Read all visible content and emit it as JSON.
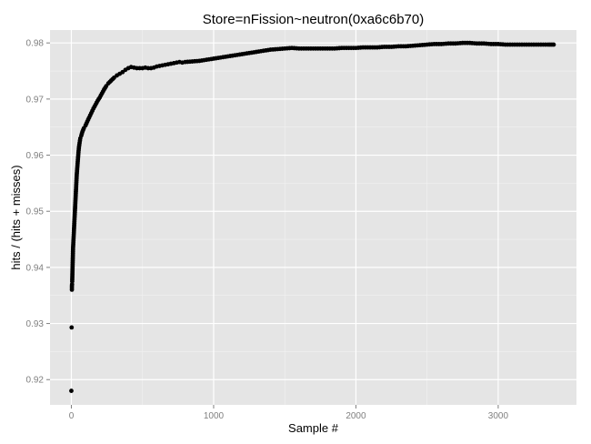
{
  "chart_data": {
    "type": "scatter",
    "title": "Store=nFission~neutron(0xa6c6b70)",
    "xlabel": "Sample #",
    "ylabel": "hits / (hits + misses)",
    "xlim": [
      -150,
      3550
    ],
    "ylim": [
      0.9155,
      0.9823
    ],
    "x_ticks": [
      0,
      1000,
      2000,
      3000
    ],
    "y_ticks": [
      0.92,
      0.93,
      0.94,
      0.95,
      0.96,
      0.97,
      0.98
    ],
    "x_tick_labels": [
      "0",
      "1000",
      "2000",
      "3000"
    ],
    "y_tick_labels": [
      "0.92",
      "0.93",
      "0.94",
      "0.95",
      "0.96",
      "0.97",
      "0.98"
    ],
    "grid": true,
    "colors": {
      "panel": "#e5e5e5",
      "grid": "#ffffff",
      "point": "#000000"
    },
    "points": [
      [
        0,
        0.918
      ],
      [
        2,
        0.9293
      ],
      [
        4,
        0.9367
      ],
      [
        5,
        0.937
      ],
      [
        6,
        0.9375
      ],
      [
        7,
        0.9385
      ],
      [
        8,
        0.9395
      ],
      [
        9,
        0.9405
      ],
      [
        10,
        0.9415
      ],
      [
        11,
        0.9425
      ],
      [
        12,
        0.9435
      ],
      [
        14,
        0.9445
      ],
      [
        16,
        0.9455
      ],
      [
        18,
        0.9465
      ],
      [
        20,
        0.9475
      ],
      [
        22,
        0.9485
      ],
      [
        24,
        0.9495
      ],
      [
        26,
        0.9505
      ],
      [
        28,
        0.9515
      ],
      [
        30,
        0.9525
      ],
      [
        32,
        0.9535
      ],
      [
        34,
        0.9545
      ],
      [
        36,
        0.9555
      ],
      [
        38,
        0.9565
      ],
      [
        41,
        0.9575
      ],
      [
        44,
        0.9585
      ],
      [
        47,
        0.9595
      ],
      [
        50,
        0.9605
      ],
      [
        54,
        0.9615
      ],
      [
        58,
        0.9622
      ],
      [
        63,
        0.963
      ],
      [
        70,
        0.9635
      ],
      [
        78,
        0.9642
      ],
      [
        88,
        0.9648
      ],
      [
        100,
        0.9653
      ],
      [
        112,
        0.966
      ],
      [
        125,
        0.9667
      ],
      [
        140,
        0.9675
      ],
      [
        155,
        0.9683
      ],
      [
        170,
        0.969
      ],
      [
        185,
        0.9697
      ],
      [
        200,
        0.9703
      ],
      [
        215,
        0.971
      ],
      [
        230,
        0.9717
      ],
      [
        245,
        0.9723
      ],
      [
        260,
        0.9728
      ],
      [
        280,
        0.9733
      ],
      [
        300,
        0.9738
      ],
      [
        320,
        0.9742
      ],
      [
        340,
        0.9745
      ],
      [
        360,
        0.9748
      ],
      [
        380,
        0.9752
      ],
      [
        400,
        0.9755
      ],
      [
        420,
        0.9757
      ],
      [
        440,
        0.9756
      ],
      [
        460,
        0.9755
      ],
      [
        480,
        0.9755
      ],
      [
        500,
        0.9755
      ],
      [
        520,
        0.9756
      ],
      [
        540,
        0.9755
      ],
      [
        560,
        0.9755
      ],
      [
        580,
        0.9756
      ],
      [
        600,
        0.9758
      ],
      [
        620,
        0.9759
      ],
      [
        640,
        0.976
      ],
      [
        660,
        0.9761
      ],
      [
        680,
        0.9762
      ],
      [
        700,
        0.9763
      ],
      [
        720,
        0.9764
      ],
      [
        740,
        0.9765
      ],
      [
        760,
        0.9766
      ],
      [
        780,
        0.9765
      ],
      [
        800,
        0.9766
      ],
      [
        850,
        0.9767
      ],
      [
        900,
        0.9768
      ],
      [
        950,
        0.977
      ],
      [
        1000,
        0.9772
      ],
      [
        1050,
        0.9774
      ],
      [
        1100,
        0.9776
      ],
      [
        1150,
        0.9778
      ],
      [
        1200,
        0.978
      ],
      [
        1250,
        0.9782
      ],
      [
        1300,
        0.9784
      ],
      [
        1350,
        0.9786
      ],
      [
        1400,
        0.9788
      ],
      [
        1450,
        0.9789
      ],
      [
        1500,
        0.979
      ],
      [
        1550,
        0.9791
      ],
      [
        1600,
        0.979
      ],
      [
        1650,
        0.979
      ],
      [
        1700,
        0.979
      ],
      [
        1750,
        0.979
      ],
      [
        1800,
        0.979
      ],
      [
        1850,
        0.979
      ],
      [
        1900,
        0.9791
      ],
      [
        1950,
        0.9791
      ],
      [
        2000,
        0.9791
      ],
      [
        2050,
        0.9792
      ],
      [
        2100,
        0.9792
      ],
      [
        2150,
        0.9792
      ],
      [
        2200,
        0.9793
      ],
      [
        2250,
        0.9793
      ],
      [
        2300,
        0.9794
      ],
      [
        2350,
        0.9794
      ],
      [
        2400,
        0.9795
      ],
      [
        2450,
        0.9796
      ],
      [
        2500,
        0.9797
      ],
      [
        2550,
        0.9798
      ],
      [
        2600,
        0.9798
      ],
      [
        2650,
        0.9799
      ],
      [
        2700,
        0.9799
      ],
      [
        2750,
        0.98
      ],
      [
        2800,
        0.98
      ],
      [
        2850,
        0.9799
      ],
      [
        2900,
        0.9799
      ],
      [
        2950,
        0.9798
      ],
      [
        3000,
        0.9798
      ],
      [
        3050,
        0.9797
      ],
      [
        3100,
        0.9797
      ],
      [
        3150,
        0.9797
      ],
      [
        3200,
        0.9797
      ],
      [
        3250,
        0.9797
      ],
      [
        3300,
        0.9797
      ],
      [
        3350,
        0.9797
      ],
      [
        3390,
        0.9797
      ]
    ]
  }
}
